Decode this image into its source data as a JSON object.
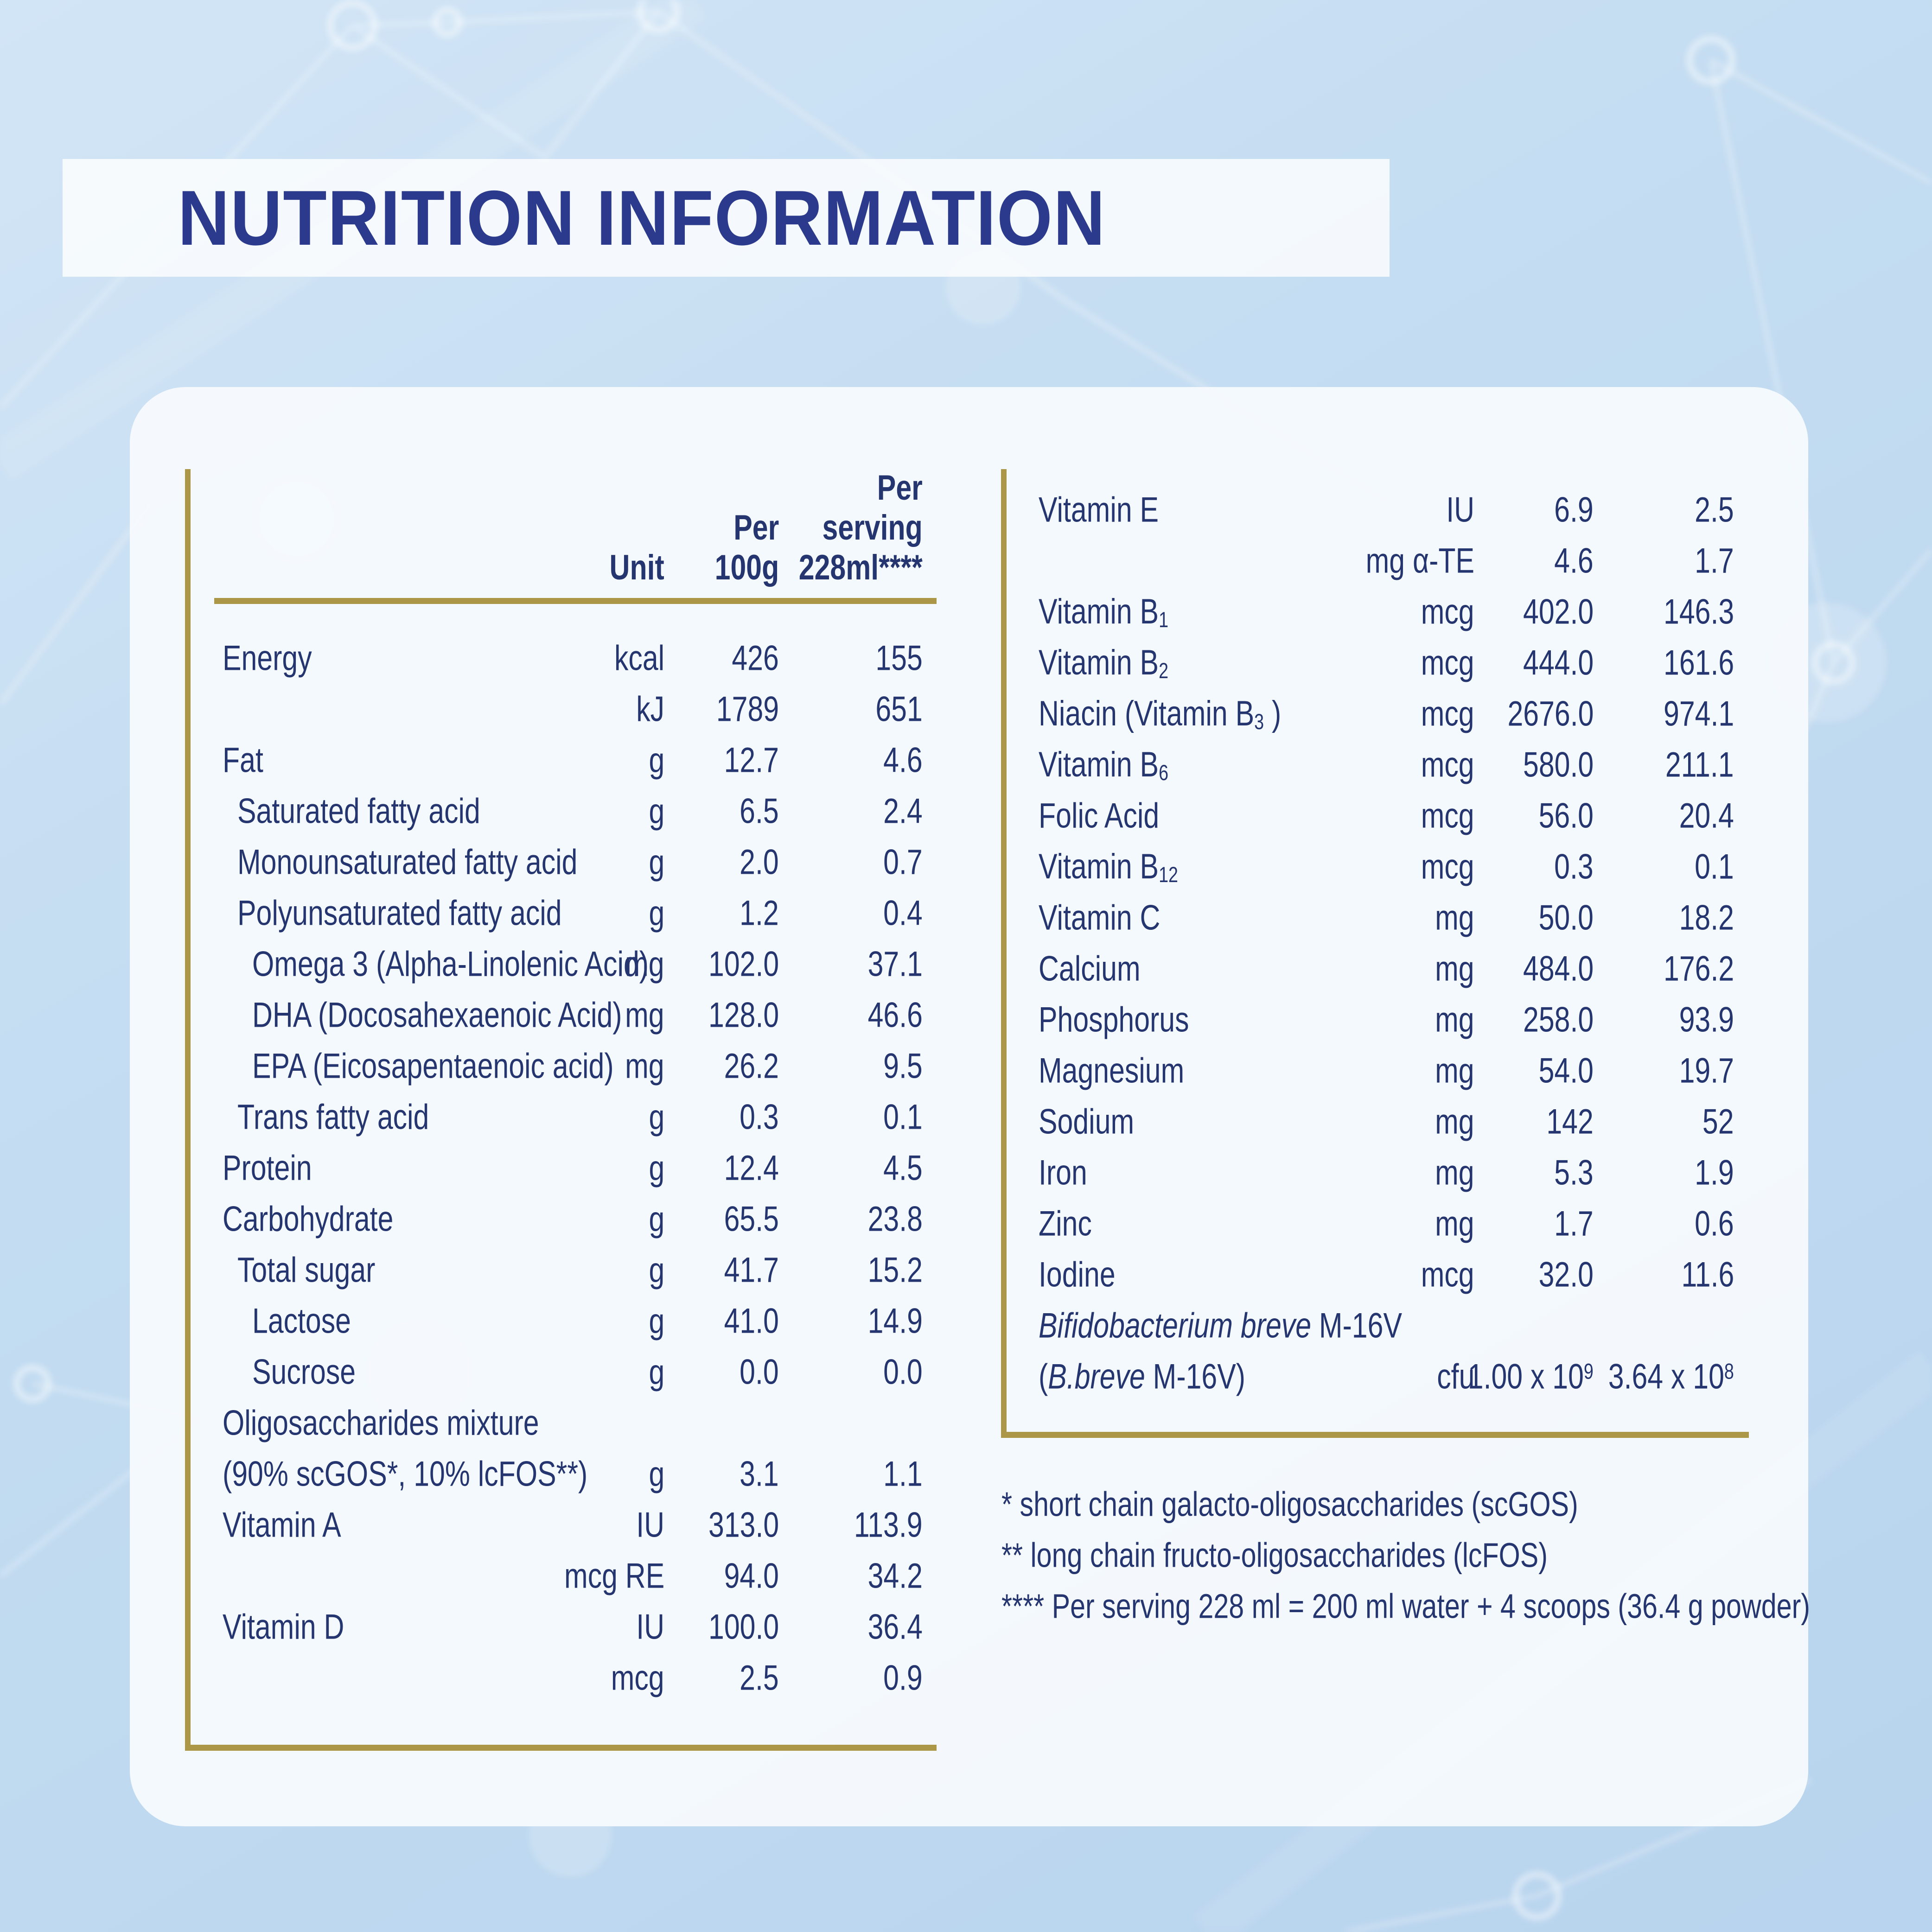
{
  "title": "NUTRITION INFORMATION",
  "colors": {
    "title_navy": "#2b3a8d",
    "text_navy": "#25356f",
    "gold_rule": "#ac9749",
    "background_blue": "#c3dcf1",
    "card_white": "#f7fbfe"
  },
  "table_header": {
    "unit": "Unit",
    "per_100g_line1": "Per",
    "per_100g_line2": "100g",
    "per_serving_line1": "Per",
    "per_serving_line2": "serving",
    "per_serving_line3": "228ml****"
  },
  "left_rows": [
    {
      "label": "Energy",
      "indent": 0,
      "unit": "kcal",
      "per_100g": "426",
      "per_serving": "155"
    },
    {
      "label": "",
      "indent": 0,
      "unit": "kJ",
      "per_100g": "1789",
      "per_serving": "651"
    },
    {
      "label": "Fat",
      "indent": 0,
      "unit": "g",
      "per_100g": "12.7",
      "per_serving": "4.6"
    },
    {
      "label": "Saturated fatty acid",
      "indent": 1,
      "unit": "g",
      "per_100g": "6.5",
      "per_serving": "2.4"
    },
    {
      "label": "Monounsaturated fatty acid",
      "indent": 1,
      "unit": "g",
      "per_100g": "2.0",
      "per_serving": "0.7"
    },
    {
      "label": "Polyunsaturated fatty acid",
      "indent": 1,
      "unit": "g",
      "per_100g": "1.2",
      "per_serving": "0.4"
    },
    {
      "label": "Omega 3 (Alpha-Linolenic Acid)",
      "indent": 2,
      "unit": "mg",
      "per_100g": "102.0",
      "per_serving": "37.1"
    },
    {
      "label": "DHA (Docosahexaenoic Acid)",
      "indent": 2,
      "unit": "mg",
      "per_100g": "128.0",
      "per_serving": "46.6"
    },
    {
      "label": "EPA (Eicosapentaenoic acid)",
      "indent": 2,
      "unit": "mg",
      "per_100g": "26.2",
      "per_serving": "9.5"
    },
    {
      "label": "Trans fatty acid",
      "indent": 1,
      "unit": "g",
      "per_100g": "0.3",
      "per_serving": "0.1"
    },
    {
      "label": "Protein",
      "indent": 0,
      "unit": "g",
      "per_100g": "12.4",
      "per_serving": "4.5"
    },
    {
      "label": "Carbohydrate",
      "indent": 0,
      "unit": "g",
      "per_100g": "65.5",
      "per_serving": "23.8"
    },
    {
      "label": "Total sugar",
      "indent": 1,
      "unit": "g",
      "per_100g": "41.7",
      "per_serving": "15.2"
    },
    {
      "label": "Lactose",
      "indent": 2,
      "unit": "g",
      "per_100g": "41.0",
      "per_serving": "14.9"
    },
    {
      "label": "Sucrose",
      "indent": 2,
      "unit": "g",
      "per_100g": "0.0",
      "per_serving": "0.0"
    },
    {
      "label": "Oligosaccharides mixture",
      "indent": 0,
      "unit": "",
      "per_100g": "",
      "per_serving": ""
    },
    {
      "label": "(90% scGOS*, 10% lcFOS**)",
      "indent": 0,
      "unit": "g",
      "per_100g": "3.1",
      "per_serving": "1.1"
    },
    {
      "label": "Vitamin A",
      "indent": 0,
      "unit": "IU",
      "per_100g": "313.0",
      "per_serving": "113.9"
    },
    {
      "label": "",
      "indent": 0,
      "unit": "mcg RE",
      "per_100g": "94.0",
      "per_serving": "34.2"
    },
    {
      "label": "Vitamin D",
      "indent": 0,
      "unit": "IU",
      "per_100g": "100.0",
      "per_serving": "36.4"
    },
    {
      "label": "",
      "indent": 0,
      "unit": "mcg",
      "per_100g": "2.5",
      "per_serving": "0.9"
    }
  ],
  "right_rows": [
    {
      "label": "Vitamin E",
      "indent": 0,
      "unit": "IU",
      "per_100g": "6.9",
      "per_serving": "2.5"
    },
    {
      "label": "",
      "indent": 0,
      "unit": "mg α-TE",
      "per_100g": "4.6",
      "per_serving": "1.7"
    },
    {
      "label": "Vitamin B_1",
      "indent": 0,
      "unit": "mcg",
      "per_100g": "402.0",
      "per_serving": "146.3"
    },
    {
      "label": "Vitamin B_2",
      "indent": 0,
      "unit": "mcg",
      "per_100g": "444.0",
      "per_serving": "161.6"
    },
    {
      "label": "Niacin (Vitamin B_3 )",
      "indent": 0,
      "unit": "mcg",
      "per_100g": "2676.0",
      "per_serving": "974.1"
    },
    {
      "label": "Vitamin B_6",
      "indent": 0,
      "unit": "mcg",
      "per_100g": "580.0",
      "per_serving": "211.1"
    },
    {
      "label": "Folic Acid",
      "indent": 0,
      "unit": "mcg",
      "per_100g": "56.0",
      "per_serving": "20.4"
    },
    {
      "label": "Vitamin B_12",
      "indent": 0,
      "unit": "mcg",
      "per_100g": "0.3",
      "per_serving": "0.1"
    },
    {
      "label": "Vitamin C",
      "indent": 0,
      "unit": "mg",
      "per_100g": "50.0",
      "per_serving": "18.2"
    },
    {
      "label": "Calcium",
      "indent": 0,
      "unit": "mg",
      "per_100g": "484.0",
      "per_serving": "176.2"
    },
    {
      "label": "Phosphorus",
      "indent": 0,
      "unit": "mg",
      "per_100g": "258.0",
      "per_serving": "93.9"
    },
    {
      "label": "Magnesium",
      "indent": 0,
      "unit": "mg",
      "per_100g": "54.0",
      "per_serving": "19.7"
    },
    {
      "label": "Sodium",
      "indent": 0,
      "unit": "mg",
      "per_100g": "142",
      "per_serving": "52"
    },
    {
      "label": "Iron",
      "indent": 0,
      "unit": "mg",
      "per_100g": "5.3",
      "per_serving": "1.9"
    },
    {
      "label": "Zinc",
      "indent": 0,
      "unit": "mg",
      "per_100g": "1.7",
      "per_serving": "0.6"
    },
    {
      "label": "Iodine",
      "indent": 0,
      "unit": "mcg",
      "per_100g": "32.0",
      "per_serving": "11.6"
    },
    {
      "label": "[i]Bifidobacterium breve[/i] M-16V",
      "indent": 0,
      "unit": "",
      "per_100g": "",
      "per_serving": ""
    },
    {
      "label": "([i]B.breve[/i] M-16V)",
      "indent": 0,
      "unit": "cfu",
      "per_100g": "1.00 x 10^9",
      "per_serving": "3.64 x 10^8"
    }
  ],
  "footnotes": [
    "* short chain galacto-oligosaccharides (scGOS)",
    "** long chain fructo-oligosaccharides (lcFOS)",
    "**** Per serving 228 ml = 200 ml water + 4 scoops (36.4 g powder)"
  ]
}
